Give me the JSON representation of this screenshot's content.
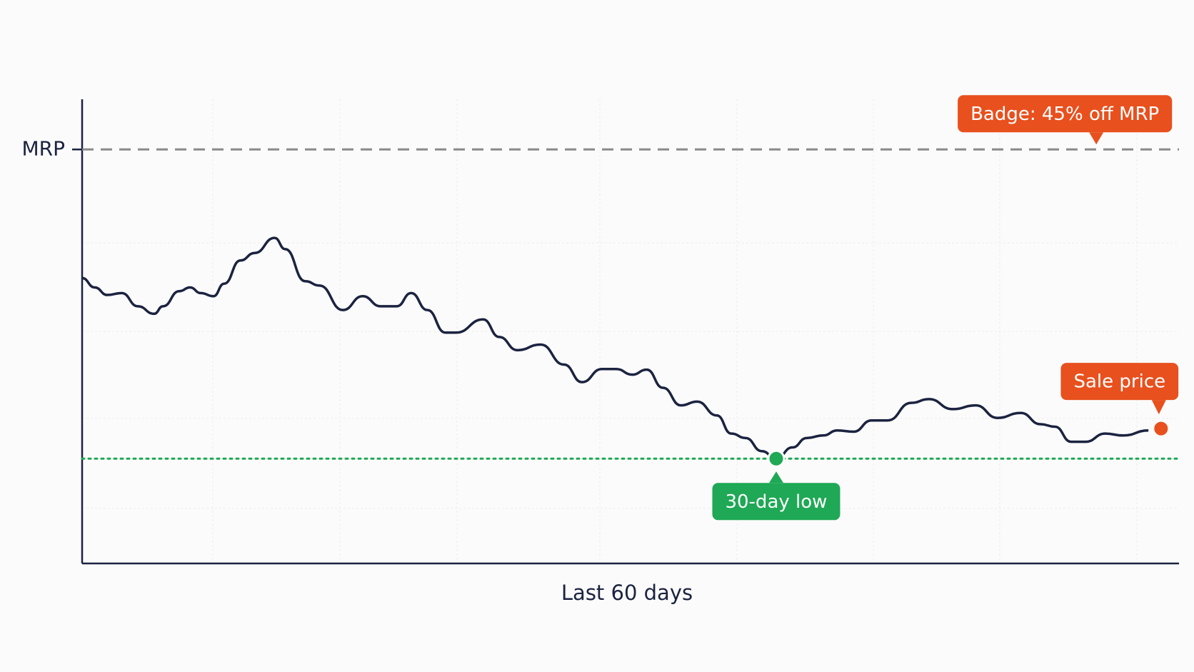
{
  "chart_data": {
    "type": "line",
    "x_label": "Last 60 days",
    "xlim": [
      0,
      61
    ],
    "ylim": [
      34,
      108
    ],
    "yticks": [
      {
        "value": 100,
        "label": "MRP"
      }
    ],
    "color": "#1b2340",
    "x": [
      0,
      0.7,
      1.4,
      2.2,
      3.1,
      4.0,
      4.5,
      5.4,
      6.0,
      6.6,
      7.3,
      7.9,
      8.8,
      9.6,
      10.7,
      11.3,
      12.4,
      13.2,
      14.5,
      15.6,
      16.6,
      17.5,
      18.3,
      19.2,
      20.2,
      20.8,
      22.3,
      23.2,
      24.2,
      25.5,
      26.8,
      27.8,
      28.9,
      29.7,
      30.6,
      31.4,
      32.3,
      33.3,
      34.2,
      35.3,
      36.1,
      36.9,
      37.8,
      38.6,
      39.5,
      40.3,
      41.2,
      42.0,
      42.9,
      43.9,
      44.8,
      46.1,
      47.1,
      48.4,
      49.7,
      50.9,
      52.2,
      53.3,
      54.1,
      55.0,
      55.8,
      56.9,
      57.9,
      59.3
    ],
    "values": [
      79.5,
      78.0,
      76.8,
      77.1,
      75.0,
      73.8,
      75.0,
      77.4,
      78.0,
      77.1,
      76.6,
      78.6,
      82.3,
      83.5,
      85.9,
      84.1,
      79.0,
      78.3,
      74.4,
      76.6,
      75.0,
      75.0,
      77.1,
      74.4,
      70.8,
      70.8,
      72.9,
      70.1,
      68.0,
      68.9,
      65.7,
      62.9,
      65.0,
      65.0,
      64.1,
      64.9,
      62.0,
      59.2,
      59.8,
      57.6,
      54.7,
      54.0,
      51.9,
      50.7,
      52.5,
      54.0,
      54.4,
      55.2,
      55.0,
      56.8,
      56.8,
      59.6,
      60.2,
      58.6,
      59.2,
      57.2,
      58.0,
      56.2,
      55.8,
      53.4,
      53.4,
      54.7,
      54.4,
      55.2
    ],
    "annotations": [
      {
        "text": "30-day low",
        "x": 38.6,
        "y": 50.7,
        "color": "#1fa855",
        "hline": true,
        "marker": true
      },
      {
        "text": "Sale price",
        "x": 60,
        "y": 55.5,
        "color": "#e8501e",
        "marker": true
      },
      {
        "text": "Badge: 45% off MRP",
        "x": 56.4,
        "y": 100,
        "color": "#e8501e"
      }
    ]
  }
}
